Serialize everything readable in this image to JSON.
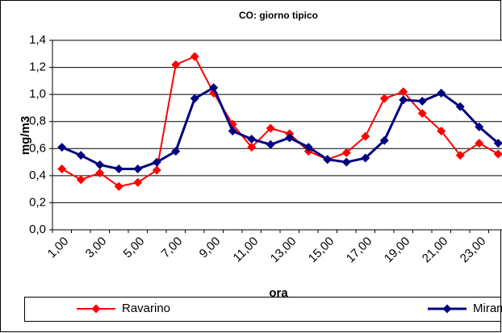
{
  "chart_data": {
    "type": "line",
    "title": "CO: giorno tipico",
    "y_label": "mg/m3",
    "x_label": "ora",
    "categories": [
      "1,00",
      null,
      "3,00",
      null,
      "5,00",
      null,
      "7,00",
      null,
      "9,00",
      null,
      "11,00",
      null,
      "13,00",
      null,
      "15,00",
      null,
      "17,00",
      null,
      "19,00",
      null,
      "21,00",
      null,
      "23,00",
      null
    ],
    "series": [
      {
        "name": "Ravarino",
        "color": "#ff0000",
        "values": [
          0.45,
          0.37,
          0.42,
          0.32,
          0.35,
          0.44,
          1.22,
          1.28,
          1.01,
          0.78,
          0.61,
          0.75,
          0.71,
          0.58,
          0.52,
          0.57,
          0.69,
          0.97,
          1.02,
          0.86,
          0.73,
          0.55,
          0.64,
          0.56
        ]
      },
      {
        "name": "Mirandola",
        "color": "#000080",
        "values": [
          0.61,
          0.55,
          0.48,
          0.45,
          0.45,
          0.5,
          0.58,
          0.97,
          1.05,
          0.73,
          0.67,
          0.63,
          0.68,
          0.61,
          0.52,
          0.5,
          0.53,
          0.66,
          0.96,
          0.95,
          1.01,
          0.91,
          0.76,
          0.64
        ]
      }
    ],
    "ylim": [
      0,
      1.4
    ],
    "yticks": [
      {
        "value": 0,
        "label": "0,0"
      },
      {
        "value": 0.2,
        "label": "0,2"
      },
      {
        "value": 0.4,
        "label": "0,4"
      },
      {
        "value": 0.6,
        "label": "0,6"
      },
      {
        "value": 0.8,
        "label": "0,8"
      },
      {
        "value": 1.0,
        "label": "1,0"
      },
      {
        "value": 1.2,
        "label": "1,2"
      },
      {
        "value": 1.4,
        "label": "1,4"
      }
    ],
    "grid": true,
    "legend": "bottom"
  }
}
